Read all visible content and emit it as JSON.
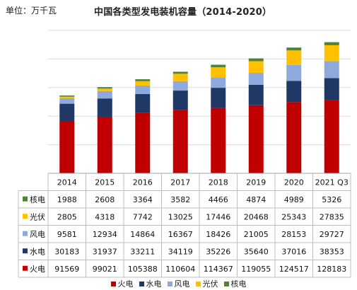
{
  "unit_label": "单位：万千瓦",
  "chart_data": {
    "type": "bar",
    "stacked": true,
    "title": "中国各类型发电装机容量（2014-2020）",
    "categories": [
      "2014",
      "2015",
      "2016",
      "2017",
      "2018",
      "2019",
      "2020",
      "2021 Q3"
    ],
    "ylim": [
      0,
      250000
    ],
    "grid": true,
    "legend_position": "bottom",
    "series": [
      {
        "name": "火电",
        "color": "#C00000",
        "values": [
          91569,
          99021,
          105388,
          110604,
          114367,
          119055,
          124517,
          128183
        ]
      },
      {
        "name": "水电",
        "color": "#203864",
        "values": [
          30183,
          31937,
          33211,
          34119,
          35226,
          35640,
          37016,
          38353
        ]
      },
      {
        "name": "风电",
        "color": "#8EA9DB",
        "values": [
          9581,
          12934,
          14864,
          16367,
          18426,
          21005,
          28153,
          29727
        ]
      },
      {
        "name": "光伏",
        "color": "#FFC000",
        "values": [
          2805,
          4318,
          7742,
          13025,
          17446,
          20468,
          25343,
          27835
        ]
      },
      {
        "name": "核电",
        "color": "#548235",
        "values": [
          1988,
          2608,
          3364,
          3582,
          4466,
          4874,
          4989,
          5326
        ]
      }
    ],
    "table_row_order": [
      "核电",
      "光伏",
      "风电",
      "水电",
      "火电"
    ]
  }
}
